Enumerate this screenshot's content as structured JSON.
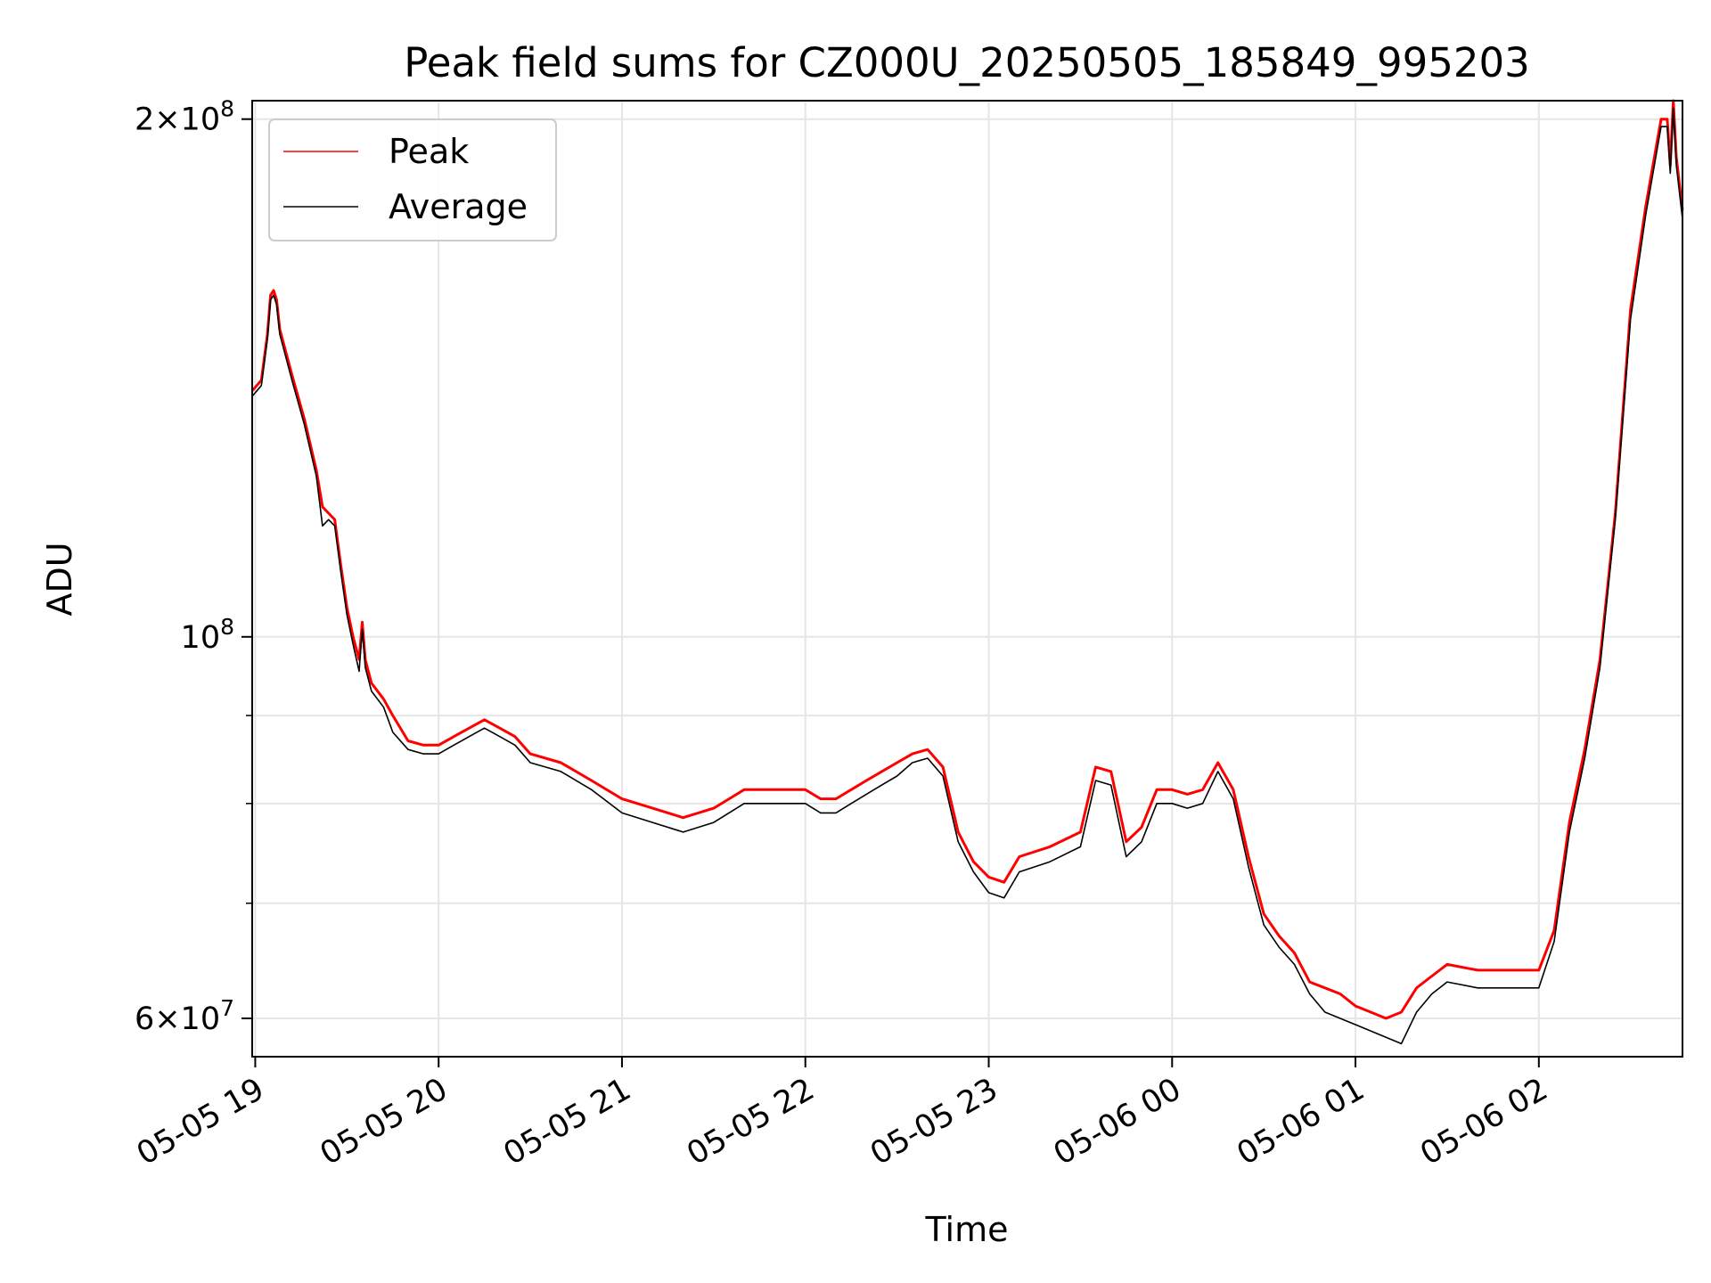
{
  "chart_data": {
    "type": "line",
    "title": "Peak field sums for CZ000U_20250505_185849_995203",
    "xlabel": "Time",
    "ylabel": "ADU",
    "y_scale": "log",
    "grid": true,
    "legend_position": "top-left",
    "xlim": [
      "2025-05-05 18:59",
      "2025-05-06 02:47"
    ],
    "ylim": [
      57000000,
      205000000
    ],
    "x_ticks": [
      {
        "value": "2025-05-05 19:00",
        "label": "05-05 19"
      },
      {
        "value": "2025-05-05 20:00",
        "label": "05-05 20"
      },
      {
        "value": "2025-05-05 21:00",
        "label": "05-05 21"
      },
      {
        "value": "2025-05-05 22:00",
        "label": "05-05 22"
      },
      {
        "value": "2025-05-05 23:00",
        "label": "05-05 23"
      },
      {
        "value": "2025-05-06 00:00",
        "label": "05-06 00"
      },
      {
        "value": "2025-05-06 01:00",
        "label": "05-06 01"
      },
      {
        "value": "2025-05-06 02:00",
        "label": "05-06 02"
      }
    ],
    "y_major_ticks": [
      {
        "value": 60000000,
        "mantissa": "6",
        "times": "×",
        "base": "10",
        "exponent": "7"
      },
      {
        "value": 100000000,
        "mantissa": "",
        "times": "",
        "base": "10",
        "exponent": "8"
      },
      {
        "value": 200000000,
        "mantissa": "2",
        "times": "×",
        "base": "10",
        "exponent": "8"
      }
    ],
    "y_minor_ticks": [
      70000000,
      80000000,
      90000000
    ],
    "colors": {
      "peak": "#ff0000",
      "average": "#000000",
      "grid": "#e6e6e6"
    },
    "series": [
      {
        "name": "Peak",
        "color": "#ff0000",
        "points": [
          [
            "2025-05-05 18:59",
            139000000
          ],
          [
            "2025-05-05 19:02",
            141000000
          ],
          [
            "2025-05-05 19:04",
            150000000
          ],
          [
            "2025-05-05 19:05",
            158000000
          ],
          [
            "2025-05-05 19:06",
            159000000
          ],
          [
            "2025-05-05 19:07",
            157000000
          ],
          [
            "2025-05-05 19:08",
            151000000
          ],
          [
            "2025-05-05 19:12",
            142000000
          ],
          [
            "2025-05-05 19:16",
            134000000
          ],
          [
            "2025-05-05 19:20",
            125000000
          ],
          [
            "2025-05-05 19:22",
            119000000
          ],
          [
            "2025-05-05 19:24",
            118000000
          ],
          [
            "2025-05-05 19:26",
            117000000
          ],
          [
            "2025-05-05 19:28",
            110000000
          ],
          [
            "2025-05-05 19:30",
            104000000
          ],
          [
            "2025-05-05 19:32",
            100000000
          ],
          [
            "2025-05-05 19:34",
            97000000
          ],
          [
            "2025-05-05 19:35",
            102000000
          ],
          [
            "2025-05-05 19:36",
            97000000
          ],
          [
            "2025-05-05 19:38",
            94000000
          ],
          [
            "2025-05-05 19:42",
            92000000
          ],
          [
            "2025-05-05 19:45",
            90000000
          ],
          [
            "2025-05-05 19:50",
            87000000
          ],
          [
            "2025-05-05 19:55",
            86500000
          ],
          [
            "2025-05-05 20:00",
            86500000
          ],
          [
            "2025-05-05 20:05",
            87500000
          ],
          [
            "2025-05-05 20:10",
            88500000
          ],
          [
            "2025-05-05 20:15",
            89500000
          ],
          [
            "2025-05-05 20:20",
            88500000
          ],
          [
            "2025-05-05 20:25",
            87500000
          ],
          [
            "2025-05-05 20:30",
            85500000
          ],
          [
            "2025-05-05 20:40",
            84500000
          ],
          [
            "2025-05-05 20:50",
            82500000
          ],
          [
            "2025-05-05 21:00",
            80500000
          ],
          [
            "2025-05-05 21:10",
            79500000
          ],
          [
            "2025-05-05 21:20",
            78500000
          ],
          [
            "2025-05-05 21:30",
            79500000
          ],
          [
            "2025-05-05 21:40",
            81500000
          ],
          [
            "2025-05-05 22:00",
            81500000
          ],
          [
            "2025-05-05 22:05",
            80500000
          ],
          [
            "2025-05-05 22:10",
            80500000
          ],
          [
            "2025-05-05 22:15",
            81500000
          ],
          [
            "2025-05-05 22:20",
            82500000
          ],
          [
            "2025-05-05 22:25",
            83500000
          ],
          [
            "2025-05-05 22:30",
            84500000
          ],
          [
            "2025-05-05 22:35",
            85500000
          ],
          [
            "2025-05-05 22:40",
            86000000
          ],
          [
            "2025-05-05 22:45",
            84000000
          ],
          [
            "2025-05-05 22:50",
            77000000
          ],
          [
            "2025-05-05 22:55",
            74000000
          ],
          [
            "2025-05-05 23:00",
            72500000
          ],
          [
            "2025-05-05 23:05",
            72000000
          ],
          [
            "2025-05-05 23:10",
            74500000
          ],
          [
            "2025-05-05 23:20",
            75500000
          ],
          [
            "2025-05-05 23:30",
            77000000
          ],
          [
            "2025-05-05 23:35",
            84000000
          ],
          [
            "2025-05-05 23:40",
            83500000
          ],
          [
            "2025-05-05 23:45",
            76000000
          ],
          [
            "2025-05-05 23:50",
            77500000
          ],
          [
            "2025-05-05 23:55",
            81500000
          ],
          [
            "2025-05-06 00:00",
            81500000
          ],
          [
            "2025-05-06 00:05",
            81000000
          ],
          [
            "2025-05-06 00:10",
            81500000
          ],
          [
            "2025-05-06 00:15",
            84500000
          ],
          [
            "2025-05-06 00:20",
            81500000
          ],
          [
            "2025-05-06 00:25",
            74500000
          ],
          [
            "2025-05-06 00:30",
            69000000
          ],
          [
            "2025-05-06 00:35",
            67000000
          ],
          [
            "2025-05-06 00:40",
            65500000
          ],
          [
            "2025-05-06 00:45",
            63000000
          ],
          [
            "2025-05-06 00:50",
            62500000
          ],
          [
            "2025-05-06 00:55",
            62000000
          ],
          [
            "2025-05-06 01:00",
            61000000
          ],
          [
            "2025-05-06 01:05",
            60500000
          ],
          [
            "2025-05-06 01:10",
            60000000
          ],
          [
            "2025-05-06 01:15",
            60500000
          ],
          [
            "2025-05-06 01:20",
            62500000
          ],
          [
            "2025-05-06 01:25",
            63500000
          ],
          [
            "2025-05-06 01:30",
            64500000
          ],
          [
            "2025-05-06 01:40",
            64000000
          ],
          [
            "2025-05-06 01:50",
            64000000
          ],
          [
            "2025-05-06 02:00",
            64000000
          ],
          [
            "2025-05-06 02:05",
            67500000
          ],
          [
            "2025-05-06 02:10",
            78000000
          ],
          [
            "2025-05-06 02:15",
            86000000
          ],
          [
            "2025-05-06 02:20",
            97000000
          ],
          [
            "2025-05-06 02:25",
            118000000
          ],
          [
            "2025-05-06 02:30",
            155000000
          ],
          [
            "2025-05-06 02:35",
            178000000
          ],
          [
            "2025-05-06 02:40",
            200000000
          ],
          [
            "2025-05-06 02:42",
            200000000
          ],
          [
            "2025-05-06 02:43",
            188000000
          ],
          [
            "2025-05-06 02:44",
            205000000
          ],
          [
            "2025-05-06 02:45",
            190000000
          ],
          [
            "2025-05-06 02:47",
            177000000
          ]
        ]
      },
      {
        "name": "Average",
        "color": "#000000",
        "points": [
          [
            "2025-05-05 18:59",
            138000000
          ],
          [
            "2025-05-05 19:02",
            140000000
          ],
          [
            "2025-05-05 19:04",
            149000000
          ],
          [
            "2025-05-05 19:05",
            157000000
          ],
          [
            "2025-05-05 19:06",
            158000000
          ],
          [
            "2025-05-05 19:07",
            156000000
          ],
          [
            "2025-05-05 19:08",
            150000000
          ],
          [
            "2025-05-05 19:12",
            141000000
          ],
          [
            "2025-05-05 19:16",
            133000000
          ],
          [
            "2025-05-05 19:20",
            124000000
          ],
          [
            "2025-05-05 19:22",
            116000000
          ],
          [
            "2025-05-05 19:24",
            117000000
          ],
          [
            "2025-05-05 19:26",
            116000000
          ],
          [
            "2025-05-05 19:28",
            109000000
          ],
          [
            "2025-05-05 19:30",
            103000000
          ],
          [
            "2025-05-05 19:32",
            99000000
          ],
          [
            "2025-05-05 19:34",
            95500000
          ],
          [
            "2025-05-05 19:35",
            101000000
          ],
          [
            "2025-05-05 19:36",
            96000000
          ],
          [
            "2025-05-05 19:38",
            93000000
          ],
          [
            "2025-05-05 19:42",
            91000000
          ],
          [
            "2025-05-05 19:45",
            88000000
          ],
          [
            "2025-05-05 19:50",
            86000000
          ],
          [
            "2025-05-05 19:55",
            85500000
          ],
          [
            "2025-05-05 20:00",
            85500000
          ],
          [
            "2025-05-05 20:05",
            86500000
          ],
          [
            "2025-05-05 20:10",
            87500000
          ],
          [
            "2025-05-05 20:15",
            88500000
          ],
          [
            "2025-05-05 20:20",
            87500000
          ],
          [
            "2025-05-05 20:25",
            86500000
          ],
          [
            "2025-05-05 20:30",
            84500000
          ],
          [
            "2025-05-05 20:40",
            83500000
          ],
          [
            "2025-05-05 20:50",
            81500000
          ],
          [
            "2025-05-05 21:00",
            79000000
          ],
          [
            "2025-05-05 21:10",
            78000000
          ],
          [
            "2025-05-05 21:20",
            77000000
          ],
          [
            "2025-05-05 21:30",
            78000000
          ],
          [
            "2025-05-05 21:40",
            80000000
          ],
          [
            "2025-05-05 22:00",
            80000000
          ],
          [
            "2025-05-05 22:05",
            79000000
          ],
          [
            "2025-05-05 22:10",
            79000000
          ],
          [
            "2025-05-05 22:15",
            80000000
          ],
          [
            "2025-05-05 22:20",
            81000000
          ],
          [
            "2025-05-05 22:25",
            82000000
          ],
          [
            "2025-05-05 22:30",
            83000000
          ],
          [
            "2025-05-05 22:35",
            84500000
          ],
          [
            "2025-05-05 22:40",
            85000000
          ],
          [
            "2025-05-05 22:45",
            83000000
          ],
          [
            "2025-05-05 22:50",
            76000000
          ],
          [
            "2025-05-05 22:55",
            73000000
          ],
          [
            "2025-05-05 23:00",
            71000000
          ],
          [
            "2025-05-05 23:05",
            70500000
          ],
          [
            "2025-05-05 23:10",
            73000000
          ],
          [
            "2025-05-05 23:20",
            74000000
          ],
          [
            "2025-05-05 23:30",
            75500000
          ],
          [
            "2025-05-05 23:35",
            82500000
          ],
          [
            "2025-05-05 23:40",
            82000000
          ],
          [
            "2025-05-05 23:45",
            74500000
          ],
          [
            "2025-05-05 23:50",
            76000000
          ],
          [
            "2025-05-05 23:55",
            80000000
          ],
          [
            "2025-05-06 00:00",
            80000000
          ],
          [
            "2025-05-06 00:05",
            79500000
          ],
          [
            "2025-05-06 00:10",
            80000000
          ],
          [
            "2025-05-06 00:15",
            83500000
          ],
          [
            "2025-05-06 00:20",
            80500000
          ],
          [
            "2025-05-06 00:25",
            73500000
          ],
          [
            "2025-05-06 00:30",
            68000000
          ],
          [
            "2025-05-06 00:35",
            66000000
          ],
          [
            "2025-05-06 00:40",
            64500000
          ],
          [
            "2025-05-06 00:45",
            62000000
          ],
          [
            "2025-05-06 00:50",
            60500000
          ],
          [
            "2025-05-06 00:55",
            60000000
          ],
          [
            "2025-05-06 01:00",
            59500000
          ],
          [
            "2025-05-06 01:05",
            59000000
          ],
          [
            "2025-05-06 01:10",
            58500000
          ],
          [
            "2025-05-06 01:15",
            58000000
          ],
          [
            "2025-05-06 01:20",
            60500000
          ],
          [
            "2025-05-06 01:25",
            62000000
          ],
          [
            "2025-05-06 01:30",
            63000000
          ],
          [
            "2025-05-06 01:40",
            62500000
          ],
          [
            "2025-05-06 01:50",
            62500000
          ],
          [
            "2025-05-06 02:00",
            62500000
          ],
          [
            "2025-05-06 02:05",
            66500000
          ],
          [
            "2025-05-06 02:10",
            77000000
          ],
          [
            "2025-05-06 02:15",
            85000000
          ],
          [
            "2025-05-06 02:20",
            96000000
          ],
          [
            "2025-05-06 02:25",
            117000000
          ],
          [
            "2025-05-06 02:30",
            153000000
          ],
          [
            "2025-05-06 02:35",
            176000000
          ],
          [
            "2025-05-06 02:40",
            198000000
          ],
          [
            "2025-05-06 02:42",
            198000000
          ],
          [
            "2025-05-06 02:43",
            186000000
          ],
          [
            "2025-05-06 02:44",
            203000000
          ],
          [
            "2025-05-06 02:45",
            188000000
          ],
          [
            "2025-05-06 02:47",
            175000000
          ]
        ]
      }
    ]
  }
}
